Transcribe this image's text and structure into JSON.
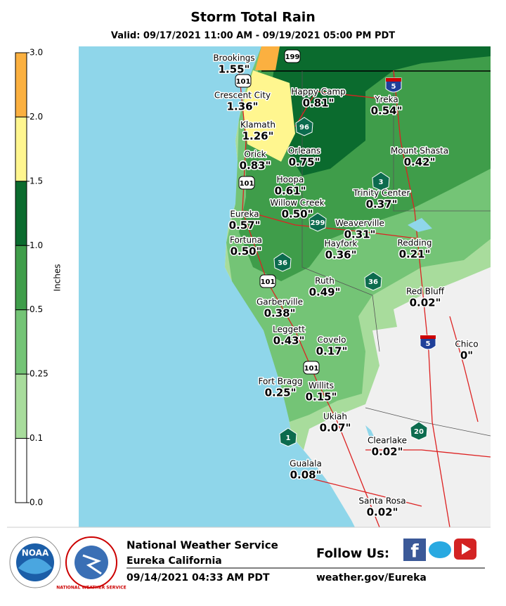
{
  "header": {
    "title": "Storm Total Rain",
    "valid": "Valid: 09/17/2021 11:00 AM - 09/19/2021 05:00 PM PDT"
  },
  "legend": {
    "label": "Inches",
    "ticks": [
      "3.0",
      "2.0",
      "1.5",
      "1.0",
      "0.5",
      "0.25",
      "0.1",
      "0.0"
    ],
    "colors": [
      "#fbb040",
      "#fff68f",
      "#0b6b2e",
      "#3f9d4a",
      "#74c476",
      "#a8dc9c",
      "#ffffff"
    ]
  },
  "cities": [
    {
      "name": "Brookings",
      "amount": "1.55\""
    },
    {
      "name": "Crescent City",
      "amount": "1.36\""
    },
    {
      "name": "Happy Camp",
      "amount": "0.81\""
    },
    {
      "name": "Yreka",
      "amount": "0.54\""
    },
    {
      "name": "Klamath",
      "amount": "1.26\""
    },
    {
      "name": "Orleans",
      "amount": "0.75\""
    },
    {
      "name": "Mount Shasta",
      "amount": "0.42\""
    },
    {
      "name": "Orick",
      "amount": "0.83\""
    },
    {
      "name": "Hoopa",
      "amount": "0.61\""
    },
    {
      "name": "Trinity Center",
      "amount": "0.37\""
    },
    {
      "name": "Willow Creek",
      "amount": "0.50\""
    },
    {
      "name": "Eureka",
      "amount": "0.57\""
    },
    {
      "name": "Weaverville",
      "amount": "0.31\""
    },
    {
      "name": "Fortuna",
      "amount": "0.50\""
    },
    {
      "name": "Hayfork",
      "amount": "0.36\""
    },
    {
      "name": "Redding",
      "amount": "0.21\""
    },
    {
      "name": "Ruth",
      "amount": "0.49\""
    },
    {
      "name": "Red Bluff",
      "amount": "0.02\""
    },
    {
      "name": "Garberville",
      "amount": "0.38\""
    },
    {
      "name": "Leggett",
      "amount": "0.43\""
    },
    {
      "name": "Covelo",
      "amount": "0.17\""
    },
    {
      "name": "Chico",
      "amount": "0\""
    },
    {
      "name": "Fort Bragg",
      "amount": "0.25\""
    },
    {
      "name": "Willits",
      "amount": "0.15\""
    },
    {
      "name": "Ukiah",
      "amount": "0.07\""
    },
    {
      "name": "Clearlake",
      "amount": "0.02\""
    },
    {
      "name": "Gualala",
      "amount": "0.08\""
    },
    {
      "name": "Santa Rosa",
      "amount": "0.02\""
    }
  ],
  "shields": [
    "199",
    "101",
    "5",
    "96",
    "101",
    "3",
    "299",
    "36",
    "101",
    "36",
    "5",
    "101",
    "1",
    "20"
  ],
  "logos": {
    "noaa": "NOAA",
    "nws": "NATIONAL WEATHER SERVICE"
  },
  "footer": {
    "office": "National Weather Service",
    "location": "Eureka California",
    "issued": "09/14/2021 04:33 AM PDT",
    "follow": "Follow Us:",
    "url": "weather.gov/Eureka"
  }
}
